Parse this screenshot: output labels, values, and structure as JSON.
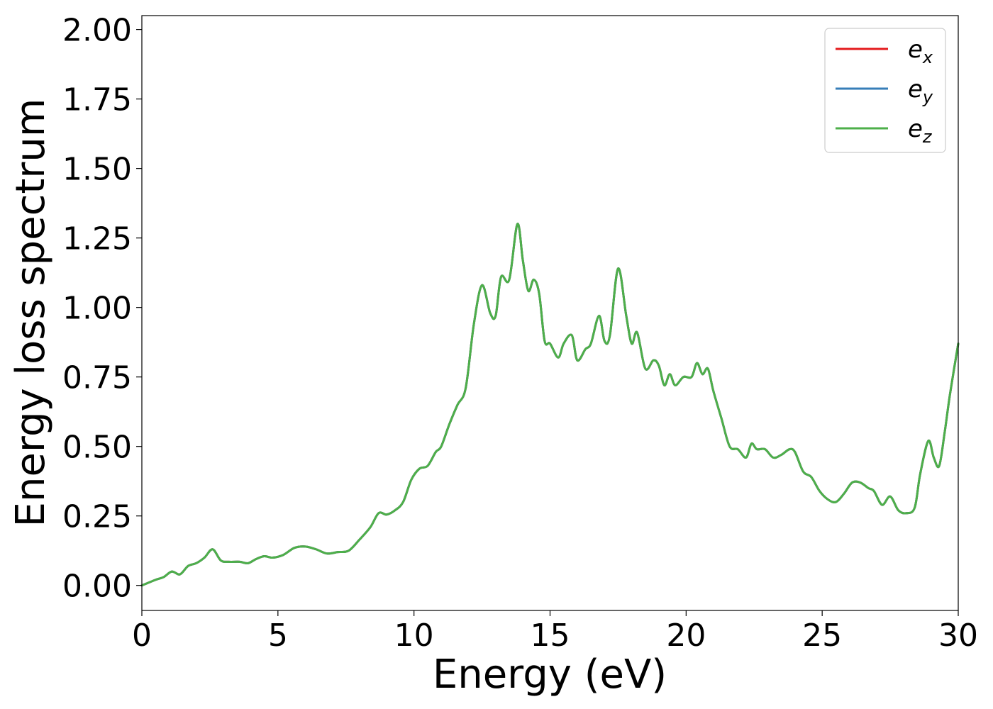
{
  "chart_data": {
    "type": "line",
    "title": "",
    "xlabel": "Energy (eV)",
    "ylabel": "Energy loss spectrum",
    "xlim": [
      0,
      30
    ],
    "ylim": [
      -0.09,
      2.05
    ],
    "xticks": [
      0,
      5,
      10,
      15,
      20,
      25,
      30
    ],
    "xtick_labels": [
      "0",
      "5",
      "10",
      "15",
      "20",
      "25",
      "30"
    ],
    "yticks": [
      0,
      0.25,
      0.5,
      0.75,
      1.0,
      1.25,
      1.5,
      1.75,
      2.0
    ],
    "ytick_labels": [
      "0.00",
      "0.25",
      "0.50",
      "0.75",
      "1.00",
      "1.25",
      "1.50",
      "1.75",
      "2.00"
    ],
    "grid": false,
    "legend_position": "top-right",
    "x": [
      0,
      0.5,
      0.8,
      1.1,
      1.4,
      1.7,
      2.0,
      2.3,
      2.6,
      2.9,
      3.2,
      3.6,
      3.9,
      4.2,
      4.5,
      4.8,
      5.2,
      5.6,
      6.0,
      6.4,
      6.8,
      7.2,
      7.6,
      8.0,
      8.4,
      8.7,
      9.0,
      9.3,
      9.6,
      9.9,
      10.2,
      10.5,
      10.8,
      11.0,
      11.3,
      11.6,
      11.9,
      12.2,
      12.5,
      12.8,
      13.0,
      13.2,
      13.5,
      13.8,
      14.0,
      14.2,
      14.4,
      14.6,
      14.8,
      15.0,
      15.3,
      15.5,
      15.8,
      16.0,
      16.3,
      16.5,
      16.8,
      17.0,
      17.2,
      17.5,
      17.8,
      18.0,
      18.2,
      18.5,
      18.8,
      19.0,
      19.2,
      19.4,
      19.6,
      19.9,
      20.2,
      20.4,
      20.6,
      20.8,
      21.0,
      21.3,
      21.6,
      21.9,
      22.2,
      22.4,
      22.6,
      22.9,
      23.2,
      23.5,
      23.8,
      24.0,
      24.3,
      24.6,
      24.9,
      25.2,
      25.5,
      25.8,
      26.1,
      26.4,
      26.7,
      26.9,
      27.2,
      27.5,
      27.8,
      28.1,
      28.4,
      28.6,
      28.9,
      29.1,
      29.3,
      29.5,
      29.7,
      30.0
    ],
    "series": [
      {
        "name": "e_x",
        "label_base": "e",
        "label_sub": "x",
        "color": "#e41a1c",
        "values": [
          0.0,
          0.02,
          0.03,
          0.05,
          0.04,
          0.07,
          0.08,
          0.1,
          0.13,
          0.09,
          0.085,
          0.085,
          0.08,
          0.095,
          0.105,
          0.1,
          0.11,
          0.135,
          0.14,
          0.13,
          0.115,
          0.12,
          0.125,
          0.165,
          0.21,
          0.26,
          0.255,
          0.27,
          0.3,
          0.38,
          0.42,
          0.43,
          0.48,
          0.5,
          0.58,
          0.65,
          0.71,
          0.94,
          1.08,
          0.98,
          0.97,
          1.11,
          1.1,
          1.3,
          1.17,
          1.06,
          1.1,
          1.05,
          0.88,
          0.87,
          0.82,
          0.87,
          0.9,
          0.81,
          0.85,
          0.87,
          0.97,
          0.88,
          0.9,
          1.14,
          0.97,
          0.87,
          0.91,
          0.78,
          0.81,
          0.79,
          0.72,
          0.76,
          0.72,
          0.75,
          0.75,
          0.8,
          0.76,
          0.78,
          0.7,
          0.6,
          0.5,
          0.49,
          0.46,
          0.51,
          0.49,
          0.49,
          0.46,
          0.47,
          0.49,
          0.48,
          0.41,
          0.39,
          0.34,
          0.31,
          0.3,
          0.33,
          0.37,
          0.37,
          0.35,
          0.34,
          0.29,
          0.32,
          0.27,
          0.26,
          0.28,
          0.4,
          0.52,
          0.46,
          0.43,
          0.55,
          0.69,
          0.87
        ]
      },
      {
        "name": "e_y",
        "label_base": "e",
        "label_sub": "y",
        "color": "#377eb8",
        "values": [
          0.0,
          0.02,
          0.03,
          0.05,
          0.04,
          0.07,
          0.08,
          0.1,
          0.13,
          0.09,
          0.085,
          0.085,
          0.08,
          0.095,
          0.105,
          0.1,
          0.11,
          0.135,
          0.14,
          0.13,
          0.115,
          0.12,
          0.125,
          0.165,
          0.21,
          0.26,
          0.255,
          0.27,
          0.3,
          0.38,
          0.42,
          0.43,
          0.48,
          0.5,
          0.58,
          0.65,
          0.71,
          0.94,
          1.08,
          0.98,
          0.97,
          1.11,
          1.1,
          1.3,
          1.17,
          1.06,
          1.1,
          1.05,
          0.88,
          0.87,
          0.82,
          0.87,
          0.9,
          0.81,
          0.85,
          0.87,
          0.97,
          0.88,
          0.9,
          1.14,
          0.97,
          0.87,
          0.91,
          0.78,
          0.81,
          0.79,
          0.72,
          0.76,
          0.72,
          0.75,
          0.75,
          0.8,
          0.76,
          0.78,
          0.7,
          0.6,
          0.5,
          0.49,
          0.46,
          0.51,
          0.49,
          0.49,
          0.46,
          0.47,
          0.49,
          0.48,
          0.41,
          0.39,
          0.34,
          0.31,
          0.3,
          0.33,
          0.37,
          0.37,
          0.35,
          0.34,
          0.29,
          0.32,
          0.27,
          0.26,
          0.28,
          0.4,
          0.52,
          0.46,
          0.43,
          0.55,
          0.69,
          0.87
        ]
      },
      {
        "name": "e_z",
        "label_base": "e",
        "label_sub": "z",
        "color": "#4daf4a",
        "values": [
          0.0,
          0.02,
          0.03,
          0.05,
          0.04,
          0.07,
          0.08,
          0.1,
          0.13,
          0.09,
          0.085,
          0.085,
          0.08,
          0.095,
          0.105,
          0.1,
          0.11,
          0.135,
          0.14,
          0.13,
          0.115,
          0.12,
          0.125,
          0.165,
          0.21,
          0.26,
          0.255,
          0.27,
          0.3,
          0.38,
          0.42,
          0.43,
          0.48,
          0.5,
          0.58,
          0.65,
          0.71,
          0.94,
          1.08,
          0.98,
          0.97,
          1.11,
          1.1,
          1.3,
          1.17,
          1.06,
          1.1,
          1.05,
          0.88,
          0.87,
          0.82,
          0.87,
          0.9,
          0.81,
          0.85,
          0.87,
          0.97,
          0.88,
          0.9,
          1.14,
          0.97,
          0.87,
          0.91,
          0.78,
          0.81,
          0.79,
          0.72,
          0.76,
          0.72,
          0.75,
          0.75,
          0.8,
          0.76,
          0.78,
          0.7,
          0.6,
          0.5,
          0.49,
          0.46,
          0.51,
          0.49,
          0.49,
          0.46,
          0.47,
          0.49,
          0.48,
          0.41,
          0.39,
          0.34,
          0.31,
          0.3,
          0.33,
          0.37,
          0.37,
          0.35,
          0.34,
          0.29,
          0.32,
          0.27,
          0.26,
          0.28,
          0.4,
          0.52,
          0.46,
          0.43,
          0.55,
          0.69,
          0.87
        ]
      }
    ]
  }
}
